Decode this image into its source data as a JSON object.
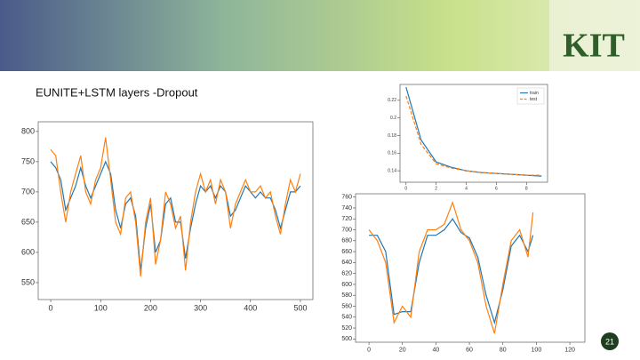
{
  "slide": {
    "title": "EUNITE+LSTM layers -Dropout",
    "logo": "KIT",
    "number": 21
  },
  "chart_data": [
    {
      "type": "line",
      "x": [
        0,
        10,
        20,
        30,
        40,
        50,
        60,
        70,
        80,
        90,
        100,
        110,
        120,
        130,
        140,
        150,
        160,
        170,
        180,
        190,
        200,
        210,
        220,
        230,
        240,
        250,
        260,
        270,
        280,
        290,
        300,
        310,
        320,
        330,
        340,
        350,
        360,
        370,
        380,
        390,
        400,
        410,
        420,
        430,
        440,
        450,
        460,
        470,
        480,
        490,
        500
      ],
      "series": [
        {
          "color": "#1f77b4",
          "values": [
            750,
            740,
            720,
            670,
            690,
            710,
            740,
            710,
            690,
            710,
            730,
            750,
            730,
            670,
            640,
            680,
            690,
            660,
            570,
            640,
            680,
            600,
            620,
            680,
            690,
            650,
            650,
            590,
            640,
            680,
            710,
            700,
            710,
            690,
            710,
            700,
            660,
            670,
            690,
            710,
            700,
            690,
            700,
            690,
            690,
            670,
            640,
            670,
            700,
            700,
            710
          ]
        },
        {
          "color": "#ff7f0e",
          "values": [
            770,
            760,
            700,
            650,
            700,
            730,
            760,
            700,
            680,
            720,
            740,
            790,
            720,
            650,
            630,
            690,
            700,
            650,
            560,
            650,
            690,
            580,
            620,
            700,
            680,
            640,
            660,
            570,
            650,
            700,
            730,
            700,
            720,
            680,
            720,
            700,
            640,
            680,
            700,
            720,
            700,
            700,
            710,
            690,
            700,
            660,
            630,
            680,
            720,
            700,
            730
          ]
        }
      ],
      "xlim": [
        -25,
        525
      ],
      "xticks": [
        0,
        100,
        200,
        300,
        400,
        500
      ],
      "ylim": [
        522,
        816
      ],
      "yticks": [
        550,
        600,
        650,
        700,
        750,
        800
      ]
    },
    {
      "type": "line",
      "x": [
        0,
        1,
        2,
        3,
        4,
        5,
        6,
        7,
        8,
        9
      ],
      "series": [
        {
          "name": "train",
          "color": "#1f77b4",
          "values": [
            0.235,
            0.175,
            0.15,
            0.144,
            0.14,
            0.138,
            0.137,
            0.136,
            0.135,
            0.134
          ]
        },
        {
          "name": "test",
          "color": "#ff7f0e",
          "linestyle": "dashed",
          "values": [
            0.225,
            0.17,
            0.148,
            0.143,
            0.14,
            0.138,
            0.137,
            0.136,
            0.135,
            0.135
          ]
        }
      ],
      "xlim": [
        -0.4,
        9.4
      ],
      "xticks": [
        0,
        2,
        4,
        6,
        8
      ],
      "ylim": [
        0.127,
        0.238
      ],
      "yticks": [
        0.14,
        0.16,
        0.18,
        0.2,
        0.22
      ],
      "legend": "upper right"
    },
    {
      "type": "line",
      "x": [
        0,
        5,
        10,
        15,
        20,
        25,
        30,
        35,
        40,
        45,
        50,
        55,
        60,
        65,
        70,
        75,
        80,
        85,
        90,
        95,
        98
      ],
      "series": [
        {
          "color": "#1f77b4",
          "values": [
            690,
            690,
            660,
            545,
            550,
            550,
            640,
            690,
            690,
            700,
            720,
            695,
            685,
            650,
            580,
            530,
            590,
            670,
            690,
            660,
            690
          ]
        },
        {
          "color": "#ff7f0e",
          "values": [
            700,
            680,
            640,
            530,
            560,
            540,
            660,
            700,
            700,
            710,
            750,
            700,
            680,
            640,
            560,
            510,
            600,
            680,
            700,
            650,
            732
          ]
        }
      ],
      "xlim": [
        -8,
        129
      ],
      "xticks": [
        0,
        20,
        40,
        60,
        80,
        100,
        120
      ],
      "ylim": [
        494,
        766
      ],
      "yticks": [
        500,
        520,
        540,
        560,
        580,
        600,
        620,
        640,
        660,
        680,
        700,
        720,
        740,
        760
      ]
    }
  ]
}
